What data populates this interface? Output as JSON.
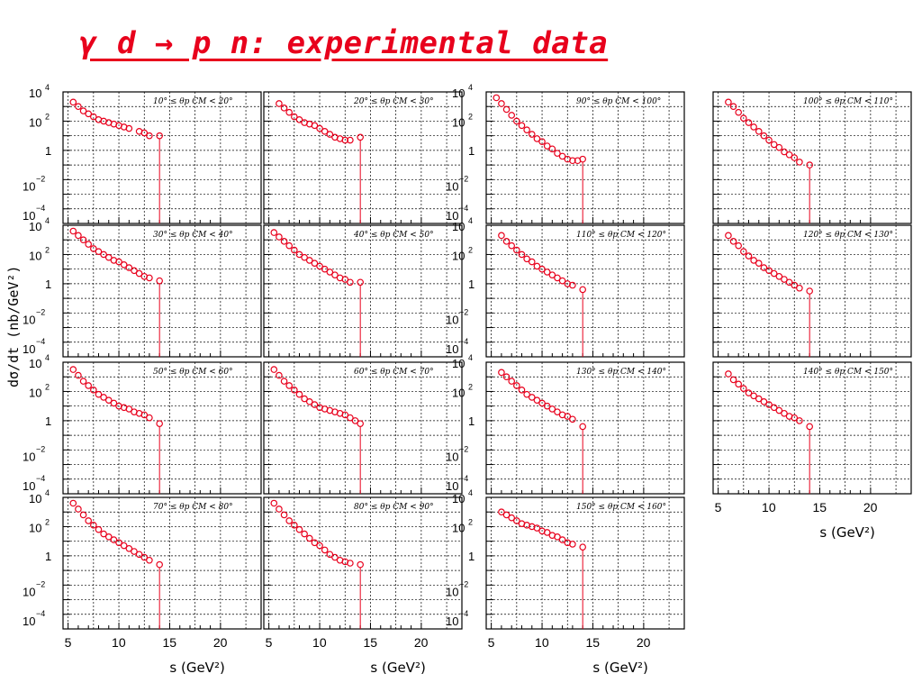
{
  "title": "γ d → p n: experimental data",
  "xlabel": "s (GeV²)",
  "ylabel": "dσ/dt (nb/GeV²)",
  "colors": {
    "title": "#e8001c",
    "points": "#e8001c",
    "black_points": "#000000",
    "blue_points": "#3040d0",
    "green_points": "#40c020"
  },
  "chart_data": {
    "type": "scatter",
    "xlim": [
      4.5,
      24
    ],
    "ylim_log10": [
      -5,
      4
    ],
    "x_ticks": [
      5,
      10,
      15,
      20
    ],
    "y_tick_labels": [
      {
        "base": "10",
        "exp": "4"
      },
      {
        "base": "10",
        "exp": "2"
      },
      {
        "base": "1",
        "exp": ""
      },
      {
        "base": "10",
        "exp": "−2"
      },
      {
        "base": "10",
        "exp": "−4"
      }
    ],
    "grid": true,
    "panels": [
      {
        "label": "10° ≤ θp CM < 20°",
        "row": 0,
        "col": 0,
        "x": [
          5.5,
          6,
          6.5,
          7,
          7.5,
          8,
          8.5,
          9,
          9.5,
          10,
          10.5,
          11,
          12,
          12.5,
          13,
          14
        ],
        "log10y": [
          3.3,
          3.0,
          2.7,
          2.5,
          2.3,
          2.1,
          2.0,
          1.9,
          1.8,
          1.7,
          1.6,
          1.5,
          1.3,
          1.2,
          1.0,
          1.0
        ]
      },
      {
        "label": "20° ≤ θp CM < 30°",
        "row": 0,
        "col": 1,
        "x": [
          6,
          6.5,
          7,
          7.5,
          8,
          8.5,
          9,
          9.5,
          10,
          10.5,
          11,
          11.5,
          12,
          12.5,
          13,
          14
        ],
        "log10y": [
          3.2,
          2.9,
          2.6,
          2.3,
          2.1,
          1.9,
          1.8,
          1.7,
          1.5,
          1.3,
          1.1,
          0.9,
          0.8,
          0.7,
          0.7,
          0.9
        ]
      },
      {
        "label": "90° ≤ θp CM < 100°",
        "row": 0,
        "col": 2,
        "x": [
          5.5,
          6,
          6.5,
          7,
          7.5,
          8,
          8.5,
          9,
          9.5,
          10,
          10.5,
          11,
          11.5,
          12,
          12.5,
          13,
          13.5,
          14
        ],
        "log10y": [
          3.6,
          3.2,
          2.8,
          2.4,
          2.0,
          1.7,
          1.4,
          1.1,
          0.8,
          0.6,
          0.3,
          0.1,
          -0.2,
          -0.4,
          -0.6,
          -0.7,
          -0.7,
          -0.6
        ]
      },
      {
        "label": "100° ≤ θp CM < 110°",
        "row": 0,
        "col": 3,
        "x": [
          6,
          6.5,
          7,
          7.5,
          8,
          8.5,
          9,
          9.5,
          10,
          10.5,
          11,
          11.5,
          12,
          12.5,
          13,
          14
        ],
        "log10y": [
          3.3,
          3.0,
          2.6,
          2.2,
          1.9,
          1.6,
          1.3,
          1.0,
          0.7,
          0.4,
          0.2,
          -0.1,
          -0.3,
          -0.5,
          -0.8,
          -1.0
        ]
      },
      {
        "label": "30° ≤ θp CM < 40°",
        "row": 1,
        "col": 0,
        "x": [
          5.5,
          6,
          6.5,
          7,
          7.5,
          8,
          8.5,
          9,
          9.5,
          10,
          10.5,
          11,
          11.5,
          12,
          12.5,
          13,
          14
        ],
        "log10y": [
          3.6,
          3.3,
          3.0,
          2.7,
          2.4,
          2.2,
          2.0,
          1.8,
          1.6,
          1.5,
          1.3,
          1.1,
          0.9,
          0.7,
          0.5,
          0.4,
          0.2
        ]
      },
      {
        "label": "40° ≤ θp CM < 50°",
        "row": 1,
        "col": 1,
        "x": [
          5.5,
          6,
          6.5,
          7,
          7.5,
          8,
          8.5,
          9,
          9.5,
          10,
          10.5,
          11,
          11.5,
          12,
          12.5,
          13,
          14
        ],
        "log10y": [
          3.5,
          3.2,
          2.9,
          2.6,
          2.3,
          2.0,
          1.8,
          1.6,
          1.4,
          1.2,
          1.0,
          0.8,
          0.6,
          0.4,
          0.3,
          0.1,
          0.1
        ]
      },
      {
        "label": "110° ≤ θp CM < 120°",
        "row": 1,
        "col": 2,
        "x": [
          6,
          6.5,
          7,
          7.5,
          8,
          8.5,
          9,
          9.5,
          10,
          10.5,
          11,
          11.5,
          12,
          12.5,
          13,
          14
        ],
        "log10y": [
          3.3,
          2.9,
          2.6,
          2.3,
          2.0,
          1.7,
          1.5,
          1.2,
          1.0,
          0.8,
          0.6,
          0.4,
          0.2,
          0.0,
          -0.1,
          -0.4
        ]
      },
      {
        "label": "120° ≤ θp CM < 130°",
        "row": 1,
        "col": 3,
        "x": [
          6,
          6.5,
          7,
          7.5,
          8,
          8.5,
          9,
          9.5,
          10,
          10.5,
          11,
          11.5,
          12,
          12.5,
          13,
          14
        ],
        "log10y": [
          3.3,
          2.9,
          2.6,
          2.2,
          1.9,
          1.6,
          1.4,
          1.1,
          0.9,
          0.7,
          0.5,
          0.3,
          0.1,
          -0.1,
          -0.3,
          -0.5
        ]
      },
      {
        "label": "50° ≤ θp CM < 60°",
        "row": 2,
        "col": 0,
        "x": [
          5.5,
          6,
          6.5,
          7,
          7.5,
          8,
          8.5,
          9,
          9.5,
          10,
          10.5,
          11,
          11.5,
          12,
          12.5,
          13,
          14
        ],
        "log10y": [
          3.5,
          3.1,
          2.7,
          2.4,
          2.1,
          1.8,
          1.6,
          1.4,
          1.2,
          1.0,
          0.9,
          0.8,
          0.6,
          0.5,
          0.4,
          0.2,
          -0.2
        ]
      },
      {
        "label": "60° ≤ θp CM < 70°",
        "row": 2,
        "col": 1,
        "x": [
          5.5,
          6,
          6.5,
          7,
          7.5,
          8,
          8.5,
          9,
          9.5,
          10,
          10.5,
          11,
          11.5,
          12,
          12.5,
          13,
          13.5,
          14
        ],
        "log10y": [
          3.5,
          3.1,
          2.7,
          2.4,
          2.1,
          1.8,
          1.5,
          1.3,
          1.1,
          0.9,
          0.8,
          0.7,
          0.6,
          0.5,
          0.4,
          0.2,
          0.0,
          -0.2
        ]
      },
      {
        "label": "130° ≤ θp CM < 140°",
        "row": 2,
        "col": 2,
        "x": [
          6,
          6.5,
          7,
          7.5,
          8,
          8.5,
          9,
          9.5,
          10,
          10.5,
          11,
          11.5,
          12,
          12.5,
          13,
          14
        ],
        "log10y": [
          3.3,
          3.0,
          2.7,
          2.4,
          2.1,
          1.8,
          1.6,
          1.4,
          1.2,
          1.0,
          0.8,
          0.6,
          0.4,
          0.3,
          0.1,
          -0.4
        ]
      },
      {
        "label": "140° ≤ θp CM < 150°",
        "row": 2,
        "col": 3,
        "x": [
          6,
          6.5,
          7,
          7.5,
          8,
          8.5,
          9,
          9.5,
          10,
          10.5,
          11,
          11.5,
          12,
          12.5,
          13,
          14
        ],
        "log10y": [
          3.2,
          2.8,
          2.5,
          2.2,
          1.9,
          1.7,
          1.5,
          1.3,
          1.1,
          0.9,
          0.7,
          0.5,
          0.3,
          0.2,
          0.0,
          -0.4
        ]
      },
      {
        "label": "70° ≤ θp CM < 80°",
        "row": 3,
        "col": 0,
        "x": [
          5.5,
          6,
          6.5,
          7,
          7.5,
          8,
          8.5,
          9,
          9.5,
          10,
          10.5,
          11,
          11.5,
          12,
          12.5,
          13,
          14
        ],
        "log10y": [
          3.6,
          3.2,
          2.8,
          2.4,
          2.1,
          1.8,
          1.5,
          1.3,
          1.1,
          0.9,
          0.7,
          0.5,
          0.3,
          0.1,
          -0.1,
          -0.3,
          -0.6
        ]
      },
      {
        "label": "80° ≤ θp CM < 90°",
        "row": 3,
        "col": 1,
        "x": [
          5.5,
          6,
          6.5,
          7,
          7.5,
          8,
          8.5,
          9,
          9.5,
          10,
          10.5,
          11,
          11.5,
          12,
          12.5,
          13,
          14
        ],
        "log10y": [
          3.6,
          3.2,
          2.8,
          2.4,
          2.1,
          1.8,
          1.5,
          1.2,
          0.9,
          0.7,
          0.4,
          0.1,
          -0.1,
          -0.3,
          -0.4,
          -0.5,
          -0.6
        ]
      },
      {
        "label": "150° ≤ θp CM < 160°",
        "row": 3,
        "col": 2,
        "x": [
          6,
          6.5,
          7,
          7.5,
          8,
          8.5,
          9,
          9.5,
          10,
          10.5,
          11,
          11.5,
          12,
          12.5,
          13,
          14
        ],
        "log10y": [
          3.0,
          2.8,
          2.6,
          2.4,
          2.2,
          2.1,
          2.0,
          1.9,
          1.7,
          1.6,
          1.4,
          1.3,
          1.1,
          0.9,
          0.8,
          0.6
        ]
      }
    ]
  }
}
